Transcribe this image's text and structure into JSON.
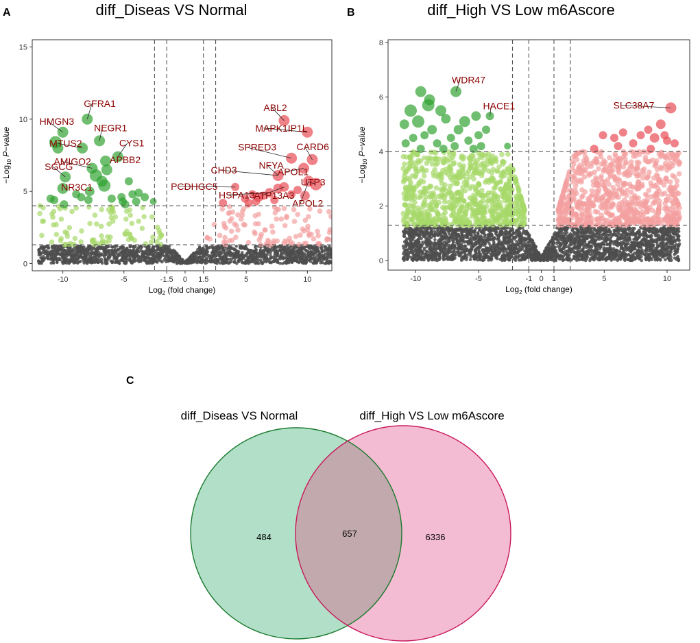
{
  "chart_data": [
    {
      "type": "scatter",
      "panel": "A",
      "title": "diff_Diseas VS Normal",
      "xlabel": "Log2 (fold change)",
      "ylabel": "-Log10 P-value",
      "xlim": [
        -12.5,
        12
      ],
      "ylim": [
        -0.5,
        15.5
      ],
      "xticks": [
        -10,
        -5,
        -1.5,
        0,
        1.5,
        5,
        10
      ],
      "xtick_labels": [
        "-10",
        "-5",
        "-1.5",
        "0",
        "1.5",
        "5",
        "10"
      ],
      "yticks": [
        0,
        5,
        10,
        15
      ],
      "fc_cutoffs": [
        -2.5,
        -1.5,
        1.5,
        2.5
      ],
      "p_cutoffs": [
        1.3,
        4
      ],
      "x_cut_inner": 1.5,
      "x_cut_outer": 2.5,
      "y_cut_low": 1.3,
      "y_cut_high": 4,
      "n_gray": 1800,
      "n_light": 200,
      "noise_width": 12,
      "seed": 11,
      "colors": {
        "ns": "#4d4d4d",
        "down_weak": "#a6d96a",
        "up_weak": "#f4a0a0",
        "down_sig": "#2ca02c",
        "up_sig": "#e8474f"
      },
      "sig_points": [
        {
          "x": -8.0,
          "y": 10.0,
          "s": 8
        },
        {
          "x": -10.0,
          "y": 9.1,
          "s": 8
        },
        {
          "x": -10.6,
          "y": 8.4,
          "s": 9
        },
        {
          "x": -10.4,
          "y": 8.0,
          "s": 8
        },
        {
          "x": -7.0,
          "y": 8.5,
          "s": 8
        },
        {
          "x": -8.4,
          "y": 8.0,
          "s": 8
        },
        {
          "x": -5.5,
          "y": 7.4,
          "s": 8
        },
        {
          "x": -6.5,
          "y": 7.1,
          "s": 8
        },
        {
          "x": -7.6,
          "y": 6.6,
          "s": 8
        },
        {
          "x": -9.8,
          "y": 6.0,
          "s": 8
        },
        {
          "x": -6.4,
          "y": 6.5,
          "s": 8
        },
        {
          "x": -7.3,
          "y": 6.1,
          "s": 9
        },
        {
          "x": -6.8,
          "y": 5.7,
          "s": 8
        },
        {
          "x": -6.6,
          "y": 5.4,
          "s": 9
        },
        {
          "x": -10.0,
          "y": 5.2,
          "s": 8
        },
        {
          "x": -7.8,
          "y": 5.0,
          "s": 7
        },
        {
          "x": -4.6,
          "y": 5.7,
          "s": 6
        },
        {
          "x": -4.3,
          "y": 4.8,
          "s": 6
        },
        {
          "x": -5.2,
          "y": 4.6,
          "s": 6
        },
        {
          "x": -3.8,
          "y": 4.9,
          "s": 6
        },
        {
          "x": -3.3,
          "y": 4.6,
          "s": 6
        },
        {
          "x": -8.5,
          "y": 4.6,
          "s": 6
        },
        {
          "x": -6.0,
          "y": 4.5,
          "s": 6
        },
        {
          "x": -5.1,
          "y": 4.3,
          "s": 6
        },
        {
          "x": -4.0,
          "y": 4.3,
          "s": 6
        },
        {
          "x": -4.9,
          "y": 4.1,
          "s": 6
        },
        {
          "x": -9.9,
          "y": 4.1,
          "s": 6
        },
        {
          "x": -11.0,
          "y": 4.5,
          "s": 6
        },
        {
          "x": -10.7,
          "y": 4.4,
          "s": 6
        },
        {
          "x": -7.9,
          "y": 4.4,
          "s": 6
        },
        {
          "x": -2.6,
          "y": 4.3,
          "s": 5
        },
        {
          "x": -8.9,
          "y": 4.8,
          "s": 6
        },
        {
          "x": 8.1,
          "y": 9.9,
          "s": 8
        },
        {
          "x": 10.0,
          "y": 9.1,
          "s": 8
        },
        {
          "x": 8.7,
          "y": 7.3,
          "s": 8
        },
        {
          "x": 10.4,
          "y": 7.2,
          "s": 8
        },
        {
          "x": 9.7,
          "y": 6.6,
          "s": 8
        },
        {
          "x": 7.6,
          "y": 6.1,
          "s": 8
        },
        {
          "x": 10.7,
          "y": 5.5,
          "s": 9
        },
        {
          "x": 10.1,
          "y": 5.7,
          "s": 8
        },
        {
          "x": 8.1,
          "y": 5.3,
          "s": 7
        },
        {
          "x": 7.6,
          "y": 5.2,
          "s": 7
        },
        {
          "x": 6.9,
          "y": 4.9,
          "s": 7
        },
        {
          "x": 9.8,
          "y": 4.7,
          "s": 7
        },
        {
          "x": 6.0,
          "y": 4.6,
          "s": 7
        },
        {
          "x": 5.5,
          "y": 4.8,
          "s": 6
        },
        {
          "x": 4.1,
          "y": 5.3,
          "s": 6
        },
        {
          "x": 5.8,
          "y": 4.3,
          "s": 6
        },
        {
          "x": 6.4,
          "y": 4.7,
          "s": 6
        },
        {
          "x": 7.3,
          "y": 4.4,
          "s": 6
        },
        {
          "x": 8.7,
          "y": 4.8,
          "s": 6
        },
        {
          "x": 5.2,
          "y": 4.2,
          "s": 6
        },
        {
          "x": 3.1,
          "y": 4.2,
          "s": 6
        },
        {
          "x": 9.2,
          "y": 5.1,
          "s": 6
        },
        {
          "x": 4.9,
          "y": 4.5,
          "s": 6
        }
      ],
      "gene_labels": [
        {
          "text": "GFRA1",
          "x": -8.0,
          "y": 10.0,
          "dx": -5,
          "dy": -18
        },
        {
          "text": "HMGN3",
          "x": -10.0,
          "y": 9.1,
          "dx": -34,
          "dy": -11
        },
        {
          "text": "NEGR1",
          "x": -7.0,
          "y": 8.5,
          "dx": -8,
          "dy": -14
        },
        {
          "text": "MTUS2",
          "x": -8.4,
          "y": 8.0,
          "dx": -48,
          "dy": -2
        },
        {
          "text": "CYS1",
          "x": -5.5,
          "y": 7.4,
          "dx": 2,
          "dy": -15
        },
        {
          "text": "AMIGO2",
          "x": -7.6,
          "y": 6.6,
          "dx": -56,
          "dy": -5
        },
        {
          "text": "APBB2",
          "x": -6.5,
          "y": 7.1,
          "dx": 6,
          "dy": 3
        },
        {
          "text": "SGCG",
          "x": -9.8,
          "y": 6.0,
          "dx": -30,
          "dy": -10
        },
        {
          "text": "NR3C1",
          "x": -9.8,
          "y": 5.2,
          "dx": -6,
          "dy": 3
        },
        {
          "text": "ABL2",
          "x": 8.1,
          "y": 9.9,
          "dx": -30,
          "dy": -14
        },
        {
          "text": "MAPK1IP1L",
          "x": 10.0,
          "y": 9.1,
          "dx": -76,
          "dy": -1
        },
        {
          "text": "SPRED3",
          "x": 8.7,
          "y": 7.3,
          "dx": -78,
          "dy": -11
        },
        {
          "text": "CARD6",
          "x": 10.4,
          "y": 7.2,
          "dx": -23,
          "dy": -14
        },
        {
          "text": "NFYA",
          "x": 7.6,
          "y": 6.1,
          "dx": -28,
          "dy": -10
        },
        {
          "text": "CHD3",
          "x": 7.6,
          "y": 6.1,
          "dx": -98,
          "dy": -3
        },
        {
          "text": "APOL1",
          "x": 9.7,
          "y": 6.6,
          "dx": -38,
          "dy": 10
        },
        {
          "text": "UTP3",
          "x": 10.7,
          "y": 5.5,
          "dx": -22,
          "dy": 2
        },
        {
          "text": "PCDHGC5",
          "x": 4.1,
          "y": 5.3,
          "dx": -94,
          "dy": 4
        },
        {
          "text": "HSPA13",
          "x": 6.9,
          "y": 4.9,
          "dx": -74,
          "dy": 8
        },
        {
          "text": "ATP13A3",
          "x": 8.1,
          "y": 5.3,
          "dx": -44,
          "dy": 17
        },
        {
          "text": "APOL2",
          "x": 10.1,
          "y": 5.7,
          "dx": -24,
          "dy": 37
        }
      ]
    },
    {
      "type": "scatter",
      "panel": "B",
      "title": "diff_High VS Low m6Ascore",
      "xlabel": "Log2 (fold change)",
      "ylabel": "-Log10 P-value",
      "xlim": [
        -12.2,
        11.8
      ],
      "ylim": [
        -0.35,
        8.1
      ],
      "xticks": [
        -10,
        -5,
        -1,
        0,
        1,
        5,
        10
      ],
      "xtick_labels": [
        "-10",
        "-5",
        "-1",
        "0",
        "1",
        "5",
        "10"
      ],
      "yticks": [
        0,
        2,
        4,
        6,
        8
      ],
      "fc_cutoffs": [
        -2.3,
        -1,
        1,
        2.3
      ],
      "p_cutoffs": [
        1.3,
        4
      ],
      "x_cut_inner": 1,
      "x_cut_outer": 2.3,
      "y_cut_low": 1.3,
      "y_cut_high": 4,
      "n_gray": 3000,
      "n_light": 1600,
      "noise_width": 11,
      "seed": 23,
      "colors": {
        "ns": "#4d4d4d",
        "down_weak": "#a6d96a",
        "up_weak": "#f4a0a0",
        "down_sig": "#2ca02c",
        "up_sig": "#e8474f"
      },
      "sig_points": [
        {
          "x": -6.8,
          "y": 6.2,
          "s": 8
        },
        {
          "x": 10.3,
          "y": 5.6,
          "s": 8
        },
        {
          "x": -4.1,
          "y": 5.3,
          "s": 6
        },
        {
          "x": -9.6,
          "y": 6.2,
          "s": 8
        },
        {
          "x": -10.4,
          "y": 5.5,
          "s": 9
        },
        {
          "x": -9.0,
          "y": 5.7,
          "s": 9
        },
        {
          "x": -8.0,
          "y": 5.5,
          "s": 8
        },
        {
          "x": -9.8,
          "y": 5.1,
          "s": 9
        },
        {
          "x": -6.1,
          "y": 5.1,
          "s": 8
        },
        {
          "x": -7.6,
          "y": 5.2,
          "s": 7
        },
        {
          "x": -5.2,
          "y": 5.3,
          "s": 7
        },
        {
          "x": -10.9,
          "y": 5.0,
          "s": 7
        },
        {
          "x": -8.7,
          "y": 4.8,
          "s": 7
        },
        {
          "x": -6.6,
          "y": 4.8,
          "s": 7
        },
        {
          "x": -5.0,
          "y": 4.6,
          "s": 6
        },
        {
          "x": -4.4,
          "y": 4.8,
          "s": 6
        },
        {
          "x": -9.3,
          "y": 4.6,
          "s": 6
        },
        {
          "x": -7.2,
          "y": 4.5,
          "s": 6
        },
        {
          "x": -10.2,
          "y": 4.5,
          "s": 6
        },
        {
          "x": -5.8,
          "y": 4.4,
          "s": 6
        },
        {
          "x": -8.3,
          "y": 4.3,
          "s": 6
        },
        {
          "x": -6.9,
          "y": 4.2,
          "s": 6
        },
        {
          "x": -10.8,
          "y": 4.3,
          "s": 6
        },
        {
          "x": -4.8,
          "y": 4.2,
          "s": 6
        },
        {
          "x": -9.6,
          "y": 4.1,
          "s": 6
        },
        {
          "x": -7.8,
          "y": 4.1,
          "s": 6
        },
        {
          "x": -5.4,
          "y": 4.1,
          "s": 6
        },
        {
          "x": -2.7,
          "y": 4.2,
          "s": 5
        },
        {
          "x": -8.9,
          "y": 5.9,
          "s": 8
        },
        {
          "x": 9.5,
          "y": 5.0,
          "s": 7
        },
        {
          "x": 8.5,
          "y": 4.8,
          "s": 6
        },
        {
          "x": 7.9,
          "y": 4.6,
          "s": 6
        },
        {
          "x": 9.0,
          "y": 4.5,
          "s": 7
        },
        {
          "x": 10.0,
          "y": 4.4,
          "s": 6
        },
        {
          "x": 6.5,
          "y": 4.7,
          "s": 6
        },
        {
          "x": 5.8,
          "y": 4.5,
          "s": 6
        },
        {
          "x": 4.9,
          "y": 4.6,
          "s": 6
        },
        {
          "x": 7.3,
          "y": 4.3,
          "s": 6
        },
        {
          "x": 6.1,
          "y": 4.2,
          "s": 6
        },
        {
          "x": 4.2,
          "y": 4.1,
          "s": 6
        },
        {
          "x": 8.7,
          "y": 4.1,
          "s": 6
        },
        {
          "x": 9.8,
          "y": 4.6,
          "s": 6
        },
        {
          "x": 10.6,
          "y": 4.3,
          "s": 6
        }
      ],
      "gene_labels": [
        {
          "text": "WDR47",
          "x": -6.8,
          "y": 6.2,
          "dx": -6,
          "dy": -12
        },
        {
          "text": "HACE1",
          "x": -4.1,
          "y": 5.3,
          "dx": -10,
          "dy": -10
        },
        {
          "text": "SLC38A7",
          "x": 10.3,
          "y": 5.6,
          "dx": -84,
          "dy": 1
        }
      ]
    }
  ],
  "panels": {
    "A": {
      "letter": "A"
    },
    "B": {
      "letter": "B"
    },
    "C": {
      "letter": "C"
    }
  },
  "venn": {
    "sets": [
      {
        "name": "diff_Diseas VS Normal",
        "color": "#b2dfc8",
        "stroke": "#1a7a2e"
      },
      {
        "name": "diff_High VS Low m6Ascore",
        "color": "#f4bcd3",
        "stroke": "#c8185a"
      }
    ],
    "intersection_color": "#c1a9ad",
    "only_a": "484",
    "both": "657",
    "only_b": "6336"
  }
}
